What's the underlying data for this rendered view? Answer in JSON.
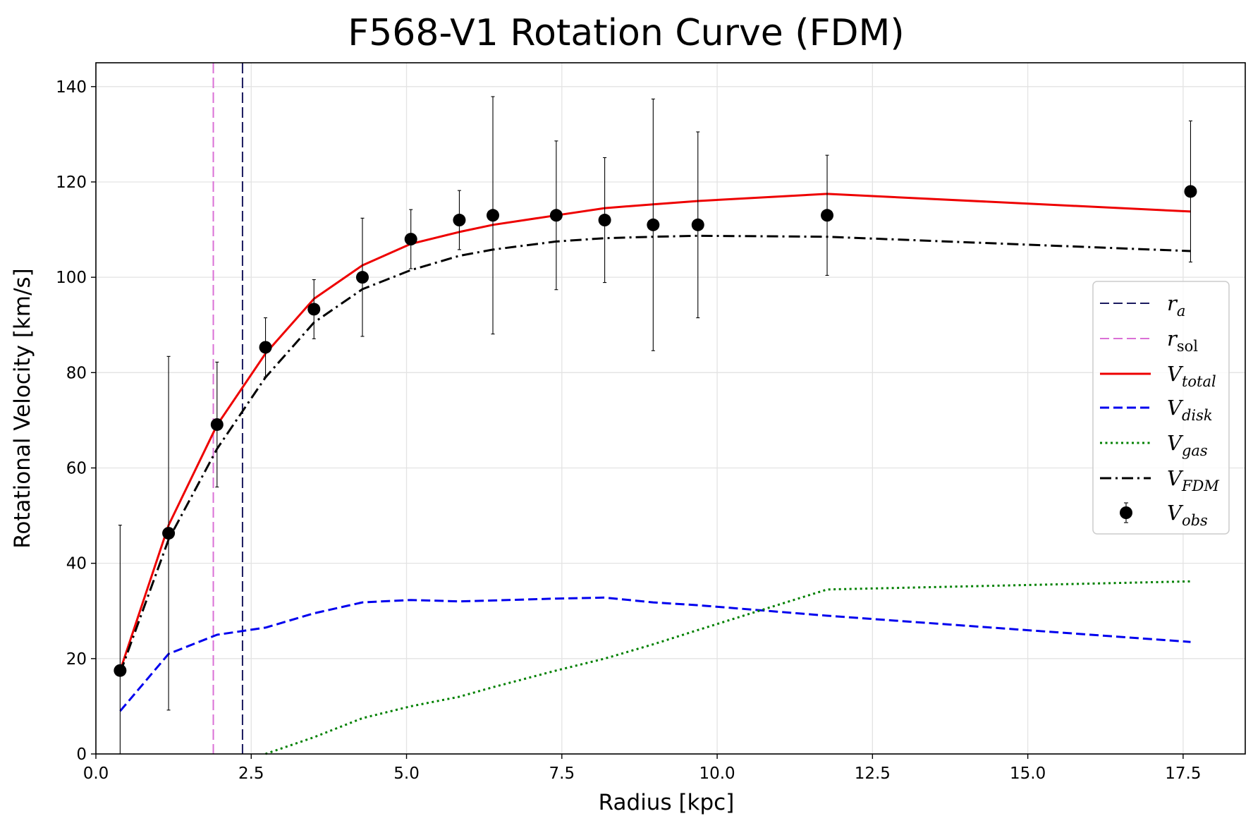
{
  "chart_data": {
    "type": "line",
    "title": "F568-V1 Rotation Curve (FDM)",
    "xlabel": "Radius [kpc]",
    "ylabel": "Rotational Velocity [km/s]",
    "xlim": [
      0,
      18.5
    ],
    "ylim": [
      0,
      145
    ],
    "xticks": [
      0.0,
      2.5,
      5.0,
      7.5,
      10.0,
      12.5,
      15.0,
      17.5
    ],
    "xtick_labels": [
      "0.0",
      "2.5",
      "5.0",
      "7.5",
      "10.0",
      "12.5",
      "15.0",
      "17.5"
    ],
    "yticks": [
      0,
      20,
      40,
      60,
      80,
      100,
      120,
      140
    ],
    "ytick_labels": [
      "0",
      "20",
      "40",
      "60",
      "80",
      "100",
      "120",
      "140"
    ],
    "grid": true,
    "legend_position": "center-right",
    "vlines": [
      {
        "id": "r_a",
        "x": 2.36,
        "color": "#1a1a5e",
        "style": "dashed"
      },
      {
        "id": "r_sol",
        "x": 1.89,
        "color": "#da70d6",
        "style": "dashed"
      }
    ],
    "series": [
      {
        "id": "v_total",
        "color": "#ee0000",
        "style": "solid",
        "x": [
          0.39,
          1.17,
          1.95,
          2.73,
          3.51,
          4.29,
          5.07,
          5.85,
          6.39,
          7.41,
          8.19,
          8.97,
          9.69,
          11.77,
          17.62
        ],
        "y": [
          17.5,
          48.0,
          69.0,
          84.0,
          95.5,
          102.5,
          107.0,
          109.5,
          111.0,
          113.0,
          114.5,
          115.3,
          116.0,
          117.5,
          113.8
        ]
      },
      {
        "id": "v_disk",
        "color": "#0000ee",
        "style": "dashed",
        "x": [
          0.39,
          1.17,
          1.95,
          2.73,
          3.51,
          4.29,
          5.07,
          5.85,
          6.39,
          7.41,
          8.19,
          8.97,
          9.69,
          11.77,
          17.62
        ],
        "y": [
          9.0,
          21.0,
          25.0,
          26.5,
          29.5,
          31.8,
          32.3,
          32.0,
          32.2,
          32.6,
          32.8,
          31.8,
          31.2,
          29.0,
          23.5
        ]
      },
      {
        "id": "v_gas",
        "color": "#008000",
        "style": "dotted",
        "x": [
          2.73,
          3.51,
          4.29,
          5.07,
          5.85,
          6.39,
          7.41,
          8.19,
          8.97,
          9.69,
          11.77,
          17.62
        ],
        "y": [
          0.0,
          3.5,
          7.5,
          10.0,
          12.0,
          14.0,
          17.5,
          20.0,
          23.0,
          26.0,
          34.5,
          36.2
        ]
      },
      {
        "id": "v_fdm",
        "color": "#000000",
        "style": "dashdot",
        "x": [
          0.39,
          1.17,
          1.95,
          2.73,
          3.51,
          4.29,
          5.07,
          5.85,
          6.39,
          7.41,
          8.19,
          8.97,
          9.69,
          11.77,
          17.62
        ],
        "y": [
          17.0,
          45.0,
          64.0,
          79.0,
          90.5,
          97.5,
          101.5,
          104.5,
          105.8,
          107.5,
          108.2,
          108.5,
          108.7,
          108.5,
          105.5
        ]
      }
    ],
    "observations": {
      "id": "v_obs",
      "color": "#000000",
      "x": [
        0.39,
        1.17,
        1.95,
        2.73,
        3.51,
        4.29,
        5.07,
        5.85,
        6.39,
        7.41,
        8.19,
        8.97,
        9.69,
        11.77,
        17.62
      ],
      "y": [
        17.5,
        46.3,
        69.1,
        85.3,
        93.3,
        100.0,
        108.0,
        112.0,
        113.0,
        113.0,
        112.0,
        111.0,
        111.0,
        113.0,
        118.0
      ],
      "err": [
        30.5,
        37.1,
        13.1,
        6.2,
        6.2,
        12.4,
        6.2,
        6.2,
        24.9,
        15.6,
        13.1,
        26.4,
        19.5,
        12.6,
        14.8
      ]
    },
    "legend": [
      {
        "series": "r_a",
        "label_main": "r",
        "label_sub": "a"
      },
      {
        "series": "r_sol",
        "label_main": "r",
        "label_sub": "sol"
      },
      {
        "series": "v_total",
        "label_main": "V",
        "label_sub": "total"
      },
      {
        "series": "v_disk",
        "label_main": "V",
        "label_sub": "disk"
      },
      {
        "series": "v_gas",
        "label_main": "V",
        "label_sub": "gas"
      },
      {
        "series": "v_fdm",
        "label_main": "V",
        "label_sub": "FDM"
      },
      {
        "series": "v_obs",
        "label_main": "V",
        "label_sub": "obs"
      }
    ]
  }
}
